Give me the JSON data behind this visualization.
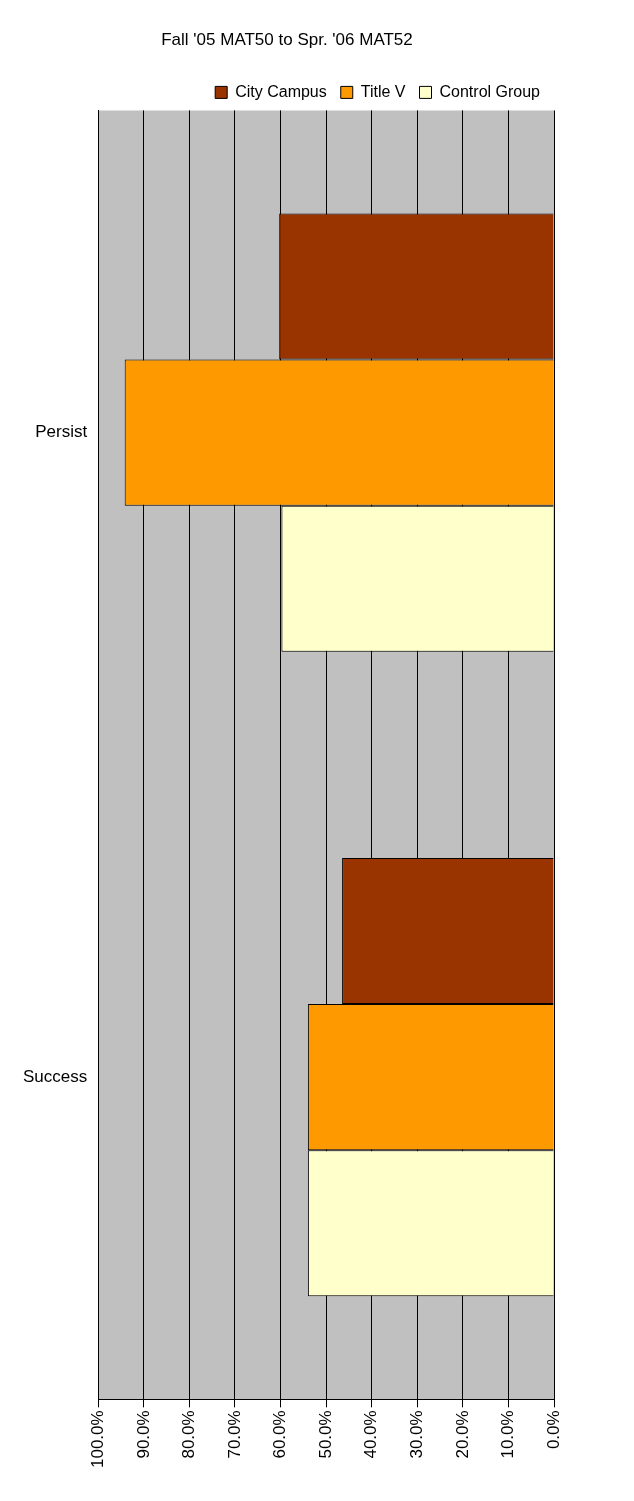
{
  "chart_data": {
    "type": "bar",
    "title": "Fall '05 MAT50 to Spr. '06 MAT52",
    "orientation": "horizontal",
    "categories": [
      "Persist",
      "Success"
    ],
    "series": [
      {
        "name": "City Campus",
        "color": "#993300",
        "values": [
          60.3,
          46.5
        ]
      },
      {
        "name": "Title V",
        "color": "#ff9900",
        "values": [
          94.2,
          54.0
        ]
      },
      {
        "name": "Control Group",
        "color": "#ffffcc",
        "values": [
          59.8,
          54.0
        ]
      }
    ],
    "xlim": [
      100,
      0
    ],
    "xticks": [
      {
        "value": 0,
        "label": "0.0%"
      },
      {
        "value": 10,
        "label": "10.0%"
      },
      {
        "value": 20,
        "label": "20.0%"
      },
      {
        "value": 30,
        "label": "30.0%"
      },
      {
        "value": 40,
        "label": "40.0%"
      },
      {
        "value": 50,
        "label": "50.0%"
      },
      {
        "value": 60,
        "label": "60.0%"
      },
      {
        "value": 70,
        "label": "70.0%"
      },
      {
        "value": 80,
        "label": "80.0%"
      },
      {
        "value": 90,
        "label": "90.0%"
      },
      {
        "value": 100,
        "label": "100.0%"
      }
    ],
    "grid": "x",
    "legend": "top right"
  }
}
